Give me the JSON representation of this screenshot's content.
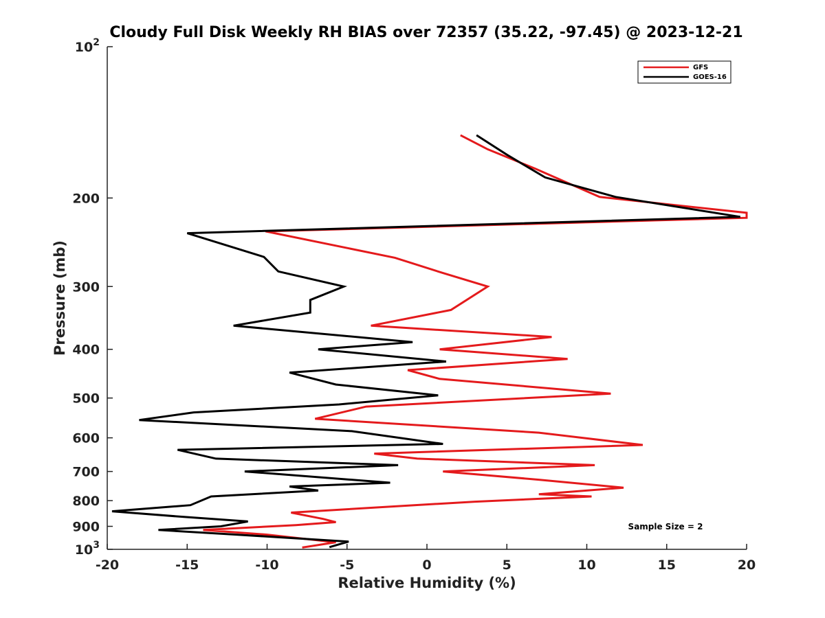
{
  "chart_data": {
    "type": "line",
    "title": "Cloudy Full Disk Weekly RH BIAS over 72357 (35.22, -97.45) @ 2023-12-21",
    "xlabel": "Relative Humidity (%)",
    "ylabel": "Pressure (mb)",
    "xlim": [
      -20,
      20
    ],
    "ylim": [
      100,
      1000
    ],
    "y_scale": "log",
    "y_reversed": true,
    "grid": false,
    "legend_position": "top-right",
    "annotation": "Sample Size = 2",
    "x_ticks": [
      -20,
      -15,
      -10,
      -5,
      0,
      5,
      10,
      15,
      20
    ],
    "y_ticks": [
      {
        "value": 100,
        "base": "10",
        "exp": "2"
      },
      {
        "value": 200,
        "label": "200"
      },
      {
        "value": 300,
        "label": "300"
      },
      {
        "value": 400,
        "label": "400"
      },
      {
        "value": 500,
        "label": "500"
      },
      {
        "value": 600,
        "label": "600"
      },
      {
        "value": 700,
        "label": "700"
      },
      {
        "value": 800,
        "label": "800"
      },
      {
        "value": 900,
        "label": "900"
      },
      {
        "value": 1000,
        "base": "10",
        "exp": "3"
      }
    ],
    "series": [
      {
        "name": "GFS",
        "color": "#e41a1c",
        "points": [
          [
            2.1,
            150
          ],
          [
            3.8,
            160
          ],
          [
            6.8,
            175
          ],
          [
            10.8,
            199
          ],
          [
            20.0,
            214
          ],
          [
            20.0,
            219
          ],
          [
            -10.1,
            233
          ],
          [
            -2.0,
            263
          ],
          [
            1.0,
            282
          ],
          [
            3.8,
            300
          ],
          [
            1.5,
            334
          ],
          [
            -3.5,
            359
          ],
          [
            7.8,
            378
          ],
          [
            0.8,
            400
          ],
          [
            8.8,
            418
          ],
          [
            -1.2,
            440
          ],
          [
            0.8,
            458
          ],
          [
            11.5,
            490
          ],
          [
            -3.8,
            520
          ],
          [
            -7.0,
            550
          ],
          [
            7.0,
            586
          ],
          [
            13.5,
            620
          ],
          [
            -3.3,
            645
          ],
          [
            -0.6,
            660
          ],
          [
            10.5,
            680
          ],
          [
            1.0,
            700
          ],
          [
            7.0,
            727
          ],
          [
            12.3,
            754
          ],
          [
            7.0,
            777
          ],
          [
            10.3,
            785
          ],
          [
            3.0,
            804
          ],
          [
            -0.8,
            817
          ],
          [
            -8.5,
            845
          ],
          [
            -6.5,
            870
          ],
          [
            -5.7,
            883
          ],
          [
            -8.2,
            895
          ],
          [
            -14.0,
            915
          ],
          [
            -10.0,
            935
          ],
          [
            -5.7,
            968
          ],
          [
            -7.8,
            992
          ]
        ]
      },
      {
        "name": "GOES-16",
        "color": "#000000",
        "points": [
          [
            3.1,
            150
          ],
          [
            5.0,
            164
          ],
          [
            7.4,
            182
          ],
          [
            11.8,
            199
          ],
          [
            19.6,
            218
          ],
          [
            -15.0,
            235
          ],
          [
            -10.2,
            262
          ],
          [
            -9.3,
            280
          ],
          [
            -5.2,
            300
          ],
          [
            -7.3,
            319
          ],
          [
            -7.3,
            338
          ],
          [
            -12.1,
            359
          ],
          [
            -0.9,
            387
          ],
          [
            -6.8,
            400
          ],
          [
            1.2,
            423
          ],
          [
            -8.6,
            445
          ],
          [
            -5.7,
            470
          ],
          [
            0.7,
            494
          ],
          [
            -5.5,
            515
          ],
          [
            -14.6,
            534
          ],
          [
            -18.0,
            553
          ],
          [
            -4.7,
            582
          ],
          [
            1.0,
            617
          ],
          [
            -15.6,
            634
          ],
          [
            -13.2,
            660
          ],
          [
            -1.8,
            680
          ],
          [
            -11.4,
            700
          ],
          [
            -2.3,
            737
          ],
          [
            -8.6,
            750
          ],
          [
            -6.8,
            764
          ],
          [
            -13.5,
            785
          ],
          [
            -14.8,
            817
          ],
          [
            -19.7,
            840
          ],
          [
            -15.2,
            862
          ],
          [
            -11.2,
            880
          ],
          [
            -12.9,
            900
          ],
          [
            -16.8,
            915
          ],
          [
            -11.9,
            935
          ],
          [
            -4.9,
            965
          ],
          [
            -6.1,
            990
          ]
        ]
      }
    ]
  }
}
